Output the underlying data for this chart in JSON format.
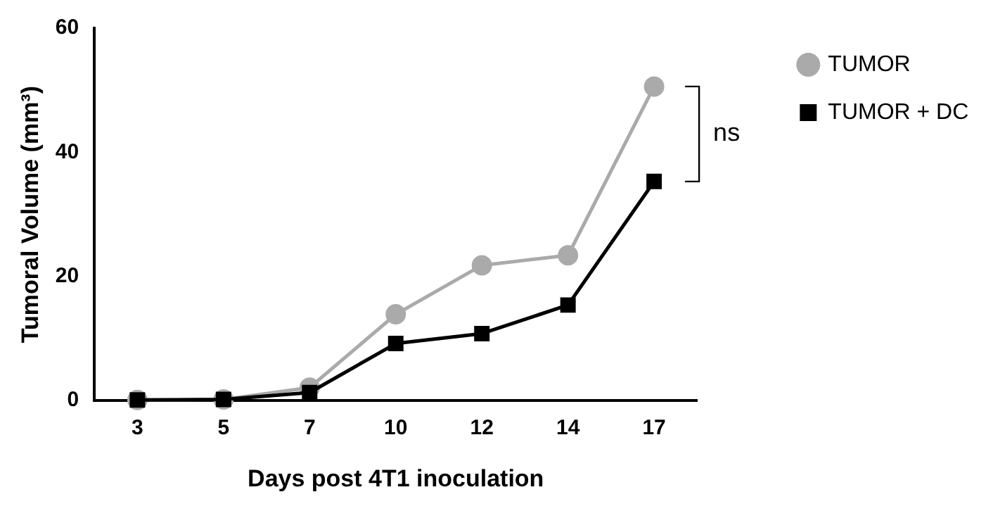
{
  "chart_data": {
    "type": "line",
    "xlabel": "Days post 4T1 inoculation",
    "ylabel": "Tumoral Volume (mm³)",
    "categories": [
      "3",
      "5",
      "7",
      "10",
      "12",
      "14",
      "17"
    ],
    "series": [
      {
        "name": "TUMOR",
        "color": "#aaaaaa",
        "marker": "circle",
        "values": [
          0.1,
          0.2,
          2.1,
          13.9,
          21.8,
          23.4,
          50.6
        ]
      },
      {
        "name": "TUMOR + DC",
        "color": "#000000",
        "marker": "square",
        "values": [
          0.1,
          0.2,
          1.3,
          9.2,
          10.8,
          15.4,
          35.3
        ]
      }
    ],
    "ylim": [
      0,
      60
    ],
    "yticks": [
      0,
      20,
      40,
      60
    ],
    "grid": false,
    "legend": "top right",
    "annotations": [
      "ns"
    ]
  }
}
